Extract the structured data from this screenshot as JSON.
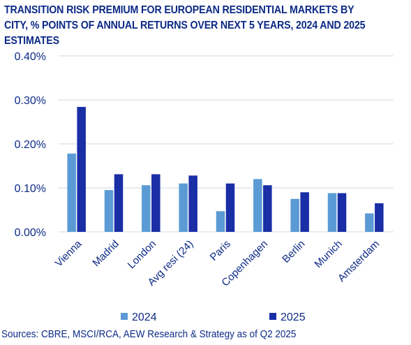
{
  "chart_data": {
    "type": "bar",
    "title": "TRANSITION RISK PREMIUM FOR EUROPEAN RESIDENTIAL MARKETS BY CITY, % POINTS OF ANNUAL RETURNS OVER NEXT 5 YEARS, 2024 AND 2025 ESTIMATES",
    "categories": [
      "Vienna",
      "Madrid",
      "London",
      "Avg resi (24)",
      "Paris",
      "Copenhagen",
      "Berlin",
      "Munich",
      "Amsterdam"
    ],
    "series": [
      {
        "name": "2024",
        "color": "#5b9bd5",
        "values": [
          0.178,
          0.095,
          0.106,
          0.11,
          0.047,
          0.12,
          0.075,
          0.088,
          0.042
        ]
      },
      {
        "name": "2025",
        "color": "#1a2ea6",
        "values": [
          0.284,
          0.131,
          0.131,
          0.128,
          0.11,
          0.106,
          0.09,
          0.088,
          0.065
        ]
      }
    ],
    "ylim": [
      0,
      0.4
    ],
    "yticks": [
      "0.00%",
      "0.10%",
      "0.20%",
      "0.30%",
      "0.40%"
    ],
    "ytick_values": [
      0,
      0.1,
      0.2,
      0.3,
      0.4
    ],
    "grid": true,
    "legend": "bottom",
    "xlabel": "",
    "ylabel": ""
  },
  "source": "Sources: CBRE, MSCI/RCA, AEW Research & Strategy as of Q2 2025",
  "colors": {
    "title": "#0d2a86",
    "text": "#0d2a86",
    "grid": "#d0d8e4"
  }
}
